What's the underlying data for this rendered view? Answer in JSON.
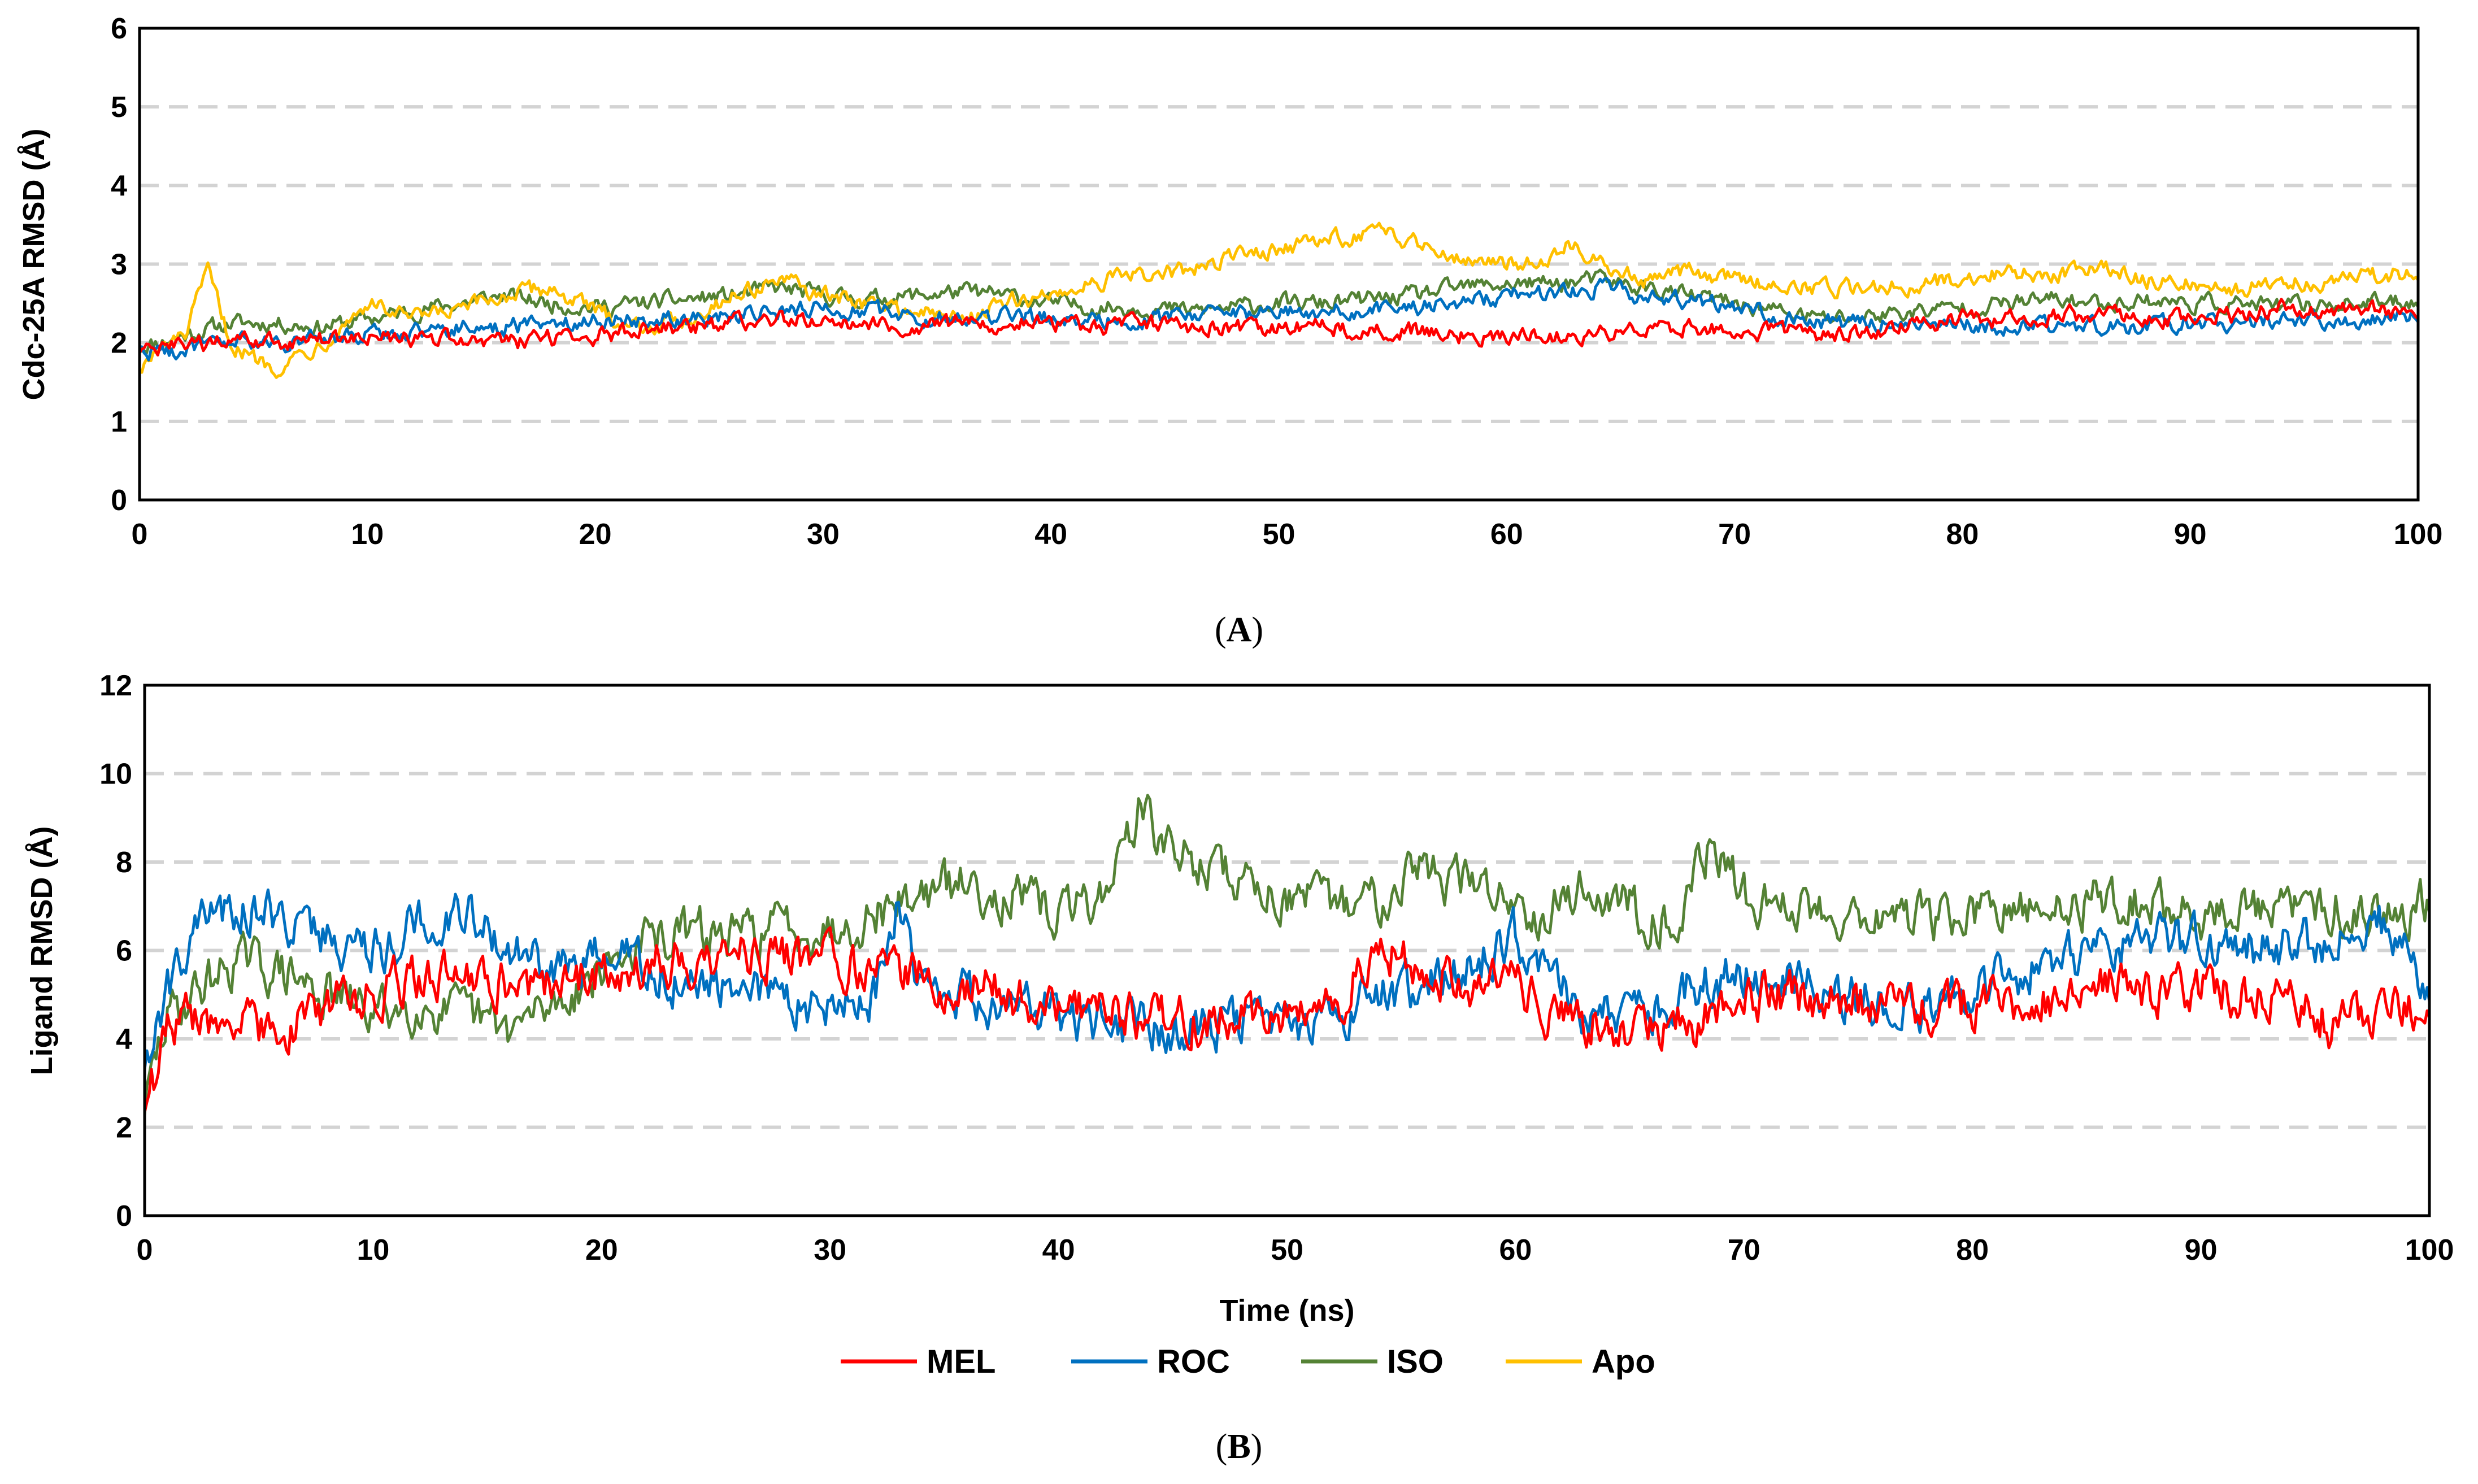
{
  "colors": {
    "MEL": "#ff0000",
    "ROC": "#0070c0",
    "ISO": "#548235",
    "Apo": "#ffc000",
    "grid": "#d3d3d3"
  },
  "legend": [
    {
      "key": "MEL",
      "label": "MEL"
    },
    {
      "key": "ROC",
      "label": "ROC"
    },
    {
      "key": "ISO",
      "label": "ISO"
    },
    {
      "key": "Apo",
      "label": "Apo"
    }
  ],
  "chart_data": [
    {
      "type": "line",
      "panel": "A",
      "panel_label": {
        "open": "(",
        "letter": "A",
        "close": ")"
      },
      "title": "",
      "xlabel": "",
      "ylabel": "Cdc-25A RMSD (Å)",
      "xlim": [
        0,
        100
      ],
      "ylim": [
        0,
        6
      ],
      "xticks": [
        0,
        10,
        20,
        30,
        40,
        50,
        60,
        70,
        80,
        90,
        100
      ],
      "yticks": [
        0,
        1,
        2,
        3,
        4,
        5,
        6
      ],
      "grid": "horizontal dashed",
      "series": [
        {
          "name": "MEL",
          "x": [
            0,
            2,
            4,
            6,
            8,
            10,
            12,
            14,
            16,
            18,
            20,
            22,
            24,
            26,
            28,
            30,
            32,
            34,
            36,
            38,
            40,
            42,
            44,
            46,
            48,
            50,
            52,
            54,
            56,
            58,
            60,
            62,
            64,
            66,
            68,
            70,
            72,
            74,
            76,
            78,
            80,
            82,
            84,
            86,
            88,
            90,
            92,
            94,
            96,
            98,
            100
          ],
          "values": [
            1.9,
            1.95,
            2.0,
            2.0,
            2.05,
            2.05,
            2.05,
            2.05,
            2.0,
            2.05,
            2.1,
            2.15,
            2.2,
            2.25,
            2.3,
            2.3,
            2.25,
            2.2,
            2.25,
            2.25,
            2.25,
            2.2,
            2.25,
            2.2,
            2.2,
            2.2,
            2.2,
            2.15,
            2.15,
            2.1,
            2.05,
            2.1,
            2.1,
            2.15,
            2.2,
            2.15,
            2.15,
            2.1,
            2.15,
            2.2,
            2.3,
            2.3,
            2.35,
            2.35,
            2.3,
            2.3,
            2.35,
            2.45,
            2.4,
            2.4,
            2.4
          ]
        },
        {
          "name": "ROC",
          "x": [
            0,
            2,
            4,
            6,
            8,
            10,
            12,
            14,
            16,
            18,
            20,
            22,
            24,
            26,
            28,
            30,
            32,
            34,
            36,
            38,
            40,
            42,
            44,
            46,
            48,
            50,
            52,
            54,
            56,
            58,
            60,
            62,
            64,
            66,
            68,
            70,
            72,
            74,
            76,
            78,
            80,
            82,
            84,
            86,
            88,
            90,
            92,
            94,
            96,
            98,
            100
          ],
          "values": [
            1.9,
            1.9,
            2.0,
            2.0,
            2.05,
            2.1,
            2.15,
            2.2,
            2.2,
            2.25,
            2.3,
            2.3,
            2.3,
            2.35,
            2.4,
            2.45,
            2.4,
            2.35,
            2.3,
            2.35,
            2.3,
            2.3,
            2.3,
            2.35,
            2.35,
            2.4,
            2.4,
            2.4,
            2.45,
            2.5,
            2.6,
            2.65,
            2.7,
            2.6,
            2.55,
            2.45,
            2.35,
            2.25,
            2.25,
            2.25,
            2.25,
            2.2,
            2.2,
            2.2,
            2.2,
            2.25,
            2.25,
            2.3,
            2.3,
            2.3,
            2.35
          ]
        },
        {
          "name": "ISO",
          "x": [
            0,
            2,
            4,
            6,
            8,
            10,
            12,
            14,
            16,
            18,
            20,
            22,
            24,
            26,
            28,
            30,
            32,
            34,
            36,
            38,
            40,
            42,
            44,
            46,
            48,
            50,
            52,
            54,
            56,
            58,
            60,
            62,
            64,
            66,
            68,
            70,
            72,
            74,
            76,
            78,
            80,
            82,
            84,
            86,
            88,
            90,
            92,
            94,
            96,
            98,
            100
          ],
          "values": [
            1.95,
            2.1,
            2.25,
            2.25,
            2.2,
            2.3,
            2.4,
            2.5,
            2.6,
            2.5,
            2.45,
            2.5,
            2.55,
            2.6,
            2.7,
            2.6,
            2.55,
            2.6,
            2.65,
            2.6,
            2.5,
            2.45,
            2.45,
            2.4,
            2.45,
            2.5,
            2.5,
            2.55,
            2.6,
            2.7,
            2.75,
            2.75,
            2.8,
            2.7,
            2.6,
            2.5,
            2.4,
            2.3,
            2.35,
            2.4,
            2.45,
            2.5,
            2.55,
            2.5,
            2.55,
            2.5,
            2.5,
            2.45,
            2.5,
            2.5,
            2.55
          ]
        },
        {
          "name": "Apo",
          "x": [
            0,
            1,
            2,
            3,
            4,
            5,
            6,
            8,
            10,
            12,
            14,
            16,
            18,
            20,
            22,
            24,
            26,
            28,
            30,
            32,
            34,
            36,
            38,
            40,
            42,
            44,
            46,
            48,
            50,
            52,
            54,
            56,
            58,
            60,
            62,
            63,
            64,
            66,
            68,
            70,
            72,
            74,
            76,
            78,
            80,
            82,
            84,
            86,
            88,
            90,
            92,
            94,
            96,
            98,
            100
          ],
          "values": [
            1.7,
            1.9,
            2.1,
            2.9,
            2.0,
            1.8,
            1.7,
            2.0,
            2.5,
            2.3,
            2.4,
            2.6,
            2.7,
            2.4,
            2.2,
            2.3,
            2.6,
            2.8,
            2.6,
            2.5,
            2.4,
            2.3,
            2.5,
            2.6,
            2.8,
            2.85,
            2.9,
            3.1,
            3.2,
            3.3,
            3.4,
            3.3,
            3.1,
            3.0,
            3.1,
            3.3,
            3.0,
            2.8,
            2.9,
            2.8,
            2.75,
            2.7,
            2.7,
            2.75,
            2.8,
            2.9,
            2.85,
            3.0,
            2.8,
            2.75,
            2.7,
            2.75,
            2.8,
            2.85,
            2.9
          ]
        }
      ]
    },
    {
      "type": "line",
      "panel": "B",
      "panel_label": {
        "open": "(",
        "letter": "B",
        "close": ")"
      },
      "title": "",
      "xlabel": "Time (ns)",
      "ylabel": "Ligand RMSD (Å)",
      "xlim": [
        0,
        100
      ],
      "ylim": [
        0,
        12
      ],
      "xticks": [
        0,
        10,
        20,
        30,
        40,
        50,
        60,
        70,
        80,
        90,
        100
      ],
      "yticks": [
        0,
        2,
        4,
        6,
        8,
        10,
        12
      ],
      "grid": "horizontal dashed",
      "series": [
        {
          "name": "MEL",
          "x": [
            0,
            1,
            2,
            4,
            6,
            8,
            10,
            12,
            14,
            16,
            18,
            20,
            22,
            24,
            26,
            28,
            30,
            32,
            34,
            36,
            38,
            40,
            42,
            44,
            46,
            48,
            50,
            52,
            54,
            56,
            58,
            60,
            62,
            64,
            66,
            68,
            70,
            72,
            74,
            76,
            78,
            80,
            82,
            84,
            86,
            88,
            90,
            92,
            94,
            96,
            98,
            100
          ],
          "values": [
            2.5,
            4.0,
            4.5,
            4.3,
            4.2,
            4.8,
            5.0,
            5.4,
            5.5,
            5.2,
            5.3,
            5.6,
            5.7,
            5.8,
            6.0,
            5.9,
            5.8,
            5.6,
            5.4,
            5.2,
            5.0,
            4.9,
            4.6,
            4.5,
            4.5,
            4.6,
            4.5,
            4.7,
            6.2,
            5.5,
            5.3,
            5.2,
            4.4,
            4.3,
            4.3,
            4.4,
            4.8,
            5.0,
            4.9,
            4.7,
            4.6,
            4.8,
            4.9,
            5.0,
            5.2,
            5.1,
            5.2,
            5.0,
            5.1,
            4.2,
            4.6,
            4.9
          ]
        },
        {
          "name": "ROC",
          "x": [
            0,
            1,
            2,
            4,
            6,
            8,
            10,
            12,
            14,
            16,
            18,
            20,
            22,
            24,
            26,
            28,
            30,
            32,
            33,
            34,
            36,
            38,
            40,
            42,
            44,
            46,
            48,
            50,
            52,
            54,
            56,
            58,
            60,
            62,
            64,
            66,
            68,
            70,
            72,
            74,
            76,
            78,
            80,
            82,
            84,
            86,
            88,
            90,
            92,
            94,
            96,
            98,
            100
          ],
          "values": [
            3.5,
            5.0,
            6.5,
            7.0,
            6.8,
            6.3,
            6.0,
            6.6,
            7.0,
            6.0,
            5.4,
            5.8,
            5.6,
            5.2,
            5.0,
            4.9,
            4.8,
            5.0,
            7.2,
            5.3,
            5.0,
            4.8,
            4.6,
            4.3,
            4.2,
            4.4,
            4.3,
            4.3,
            4.5,
            5.0,
            5.2,
            5.6,
            6.4,
            5.0,
            4.5,
            4.7,
            5.2,
            5.4,
            5.5,
            5.0,
            4.8,
            4.6,
            5.0,
            5.5,
            5.8,
            6.0,
            6.3,
            6.2,
            6.0,
            6.1,
            6.2,
            6.6,
            5.2
          ]
        },
        {
          "name": "ISO",
          "x": [
            0,
            1,
            2,
            4,
            6,
            8,
            10,
            12,
            14,
            16,
            18,
            20,
            22,
            24,
            26,
            28,
            30,
            32,
            34,
            36,
            38,
            40,
            42,
            43.5,
            45,
            46,
            48,
            50,
            52,
            54,
            55.5,
            57,
            59,
            61,
            63,
            65,
            67,
            68.5,
            70,
            72,
            74,
            76,
            78,
            80,
            82,
            84,
            86,
            88,
            90,
            92,
            94,
            96,
            98,
            100
          ],
          "values": [
            2.5,
            4.5,
            5.0,
            5.8,
            5.5,
            5.0,
            4.6,
            4.8,
            4.5,
            4.2,
            4.8,
            5.6,
            6.2,
            6.4,
            6.3,
            6.6,
            6.5,
            6.9,
            7.3,
            7.5,
            7.2,
            6.8,
            7.3,
            9.2,
            8.2,
            8.0,
            7.6,
            7.2,
            7.0,
            7.2,
            8.0,
            7.6,
            7.4,
            6.9,
            7.4,
            7.0,
            6.6,
            8.4,
            7.2,
            7.0,
            6.9,
            6.8,
            6.7,
            6.8,
            6.8,
            7.0,
            7.2,
            7.0,
            6.8,
            6.9,
            6.9,
            7.0,
            6.8,
            7.2
          ]
        }
      ]
    }
  ]
}
